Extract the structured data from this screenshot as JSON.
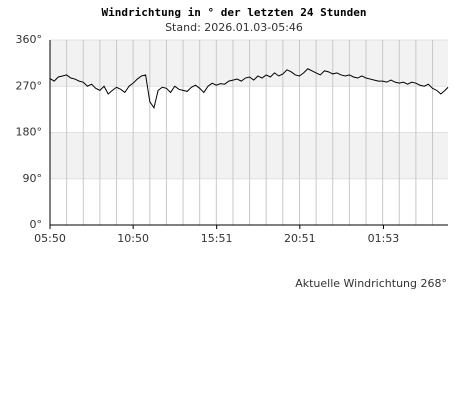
{
  "chart_data": {
    "type": "line",
    "title": "Windrichtung in ° der letzten 24 Stunden",
    "subtitle": "Stand: 2026.01.03-05:46",
    "annotation": "Aktuelle Windrichtung 268°",
    "x": [
      0,
      0.25,
      0.5,
      0.75,
      1,
      1.25,
      1.5,
      1.75,
      2,
      2.25,
      2.5,
      2.75,
      3,
      3.25,
      3.5,
      3.75,
      4,
      4.25,
      4.5,
      4.75,
      5,
      5.25,
      5.5,
      5.75,
      6,
      6.25,
      6.5,
      6.75,
      7,
      7.25,
      7.5,
      7.75,
      8,
      8.25,
      8.5,
      8.75,
      9,
      9.25,
      9.5,
      9.75,
      10,
      10.25,
      10.5,
      10.75,
      11,
      11.25,
      11.5,
      11.75,
      12,
      12.25,
      12.5,
      12.75,
      13,
      13.25,
      13.5,
      13.75,
      14,
      14.25,
      14.5,
      14.75,
      15,
      15.25,
      15.5,
      15.75,
      16,
      16.25,
      16.5,
      16.75,
      17,
      17.25,
      17.5,
      17.75,
      18,
      18.25,
      18.5,
      18.75,
      19,
      19.25,
      19.5,
      19.75,
      20,
      20.25,
      20.5,
      20.75,
      21,
      21.25,
      21.5,
      21.75,
      22,
      22.25,
      22.5,
      22.75,
      23,
      23.25,
      23.5,
      23.75,
      23.93
    ],
    "series": [
      {
        "name": "Windrichtung",
        "color": "#000000",
        "values": [
          285,
          280,
          288,
          290,
          292,
          286,
          284,
          280,
          278,
          270,
          274,
          266,
          262,
          270,
          255,
          262,
          268,
          264,
          258,
          270,
          276,
          284,
          290,
          292,
          240,
          228,
          262,
          268,
          266,
          258,
          270,
          264,
          262,
          260,
          268,
          272,
          266,
          258,
          270,
          276,
          272,
          275,
          274,
          280,
          282,
          284,
          280,
          286,
          288,
          282,
          290,
          286,
          292,
          288,
          296,
          290,
          294,
          302,
          298,
          292,
          290,
          296,
          304,
          300,
          296,
          292,
          300,
          298,
          294,
          296,
          292,
          290,
          292,
          288,
          286,
          290,
          286,
          284,
          282,
          280,
          280,
          278,
          282,
          278,
          276,
          278,
          274,
          278,
          276,
          272,
          270,
          274,
          266,
          262,
          255,
          262,
          268
        ]
      }
    ],
    "xlim": [
      0,
      23.93
    ],
    "xticks": [
      {
        "value": 0,
        "label": "05:50"
      },
      {
        "value": 5,
        "label": "10:50"
      },
      {
        "value": 10.02,
        "label": "15:51"
      },
      {
        "value": 15.02,
        "label": "20:51"
      },
      {
        "value": 20.05,
        "label": "01:53"
      }
    ],
    "xgrid": [
      1,
      2,
      3,
      4,
      5,
      6,
      7,
      8,
      9,
      10,
      11,
      12,
      13,
      14,
      15,
      16,
      17,
      18,
      19,
      20,
      21,
      22,
      23
    ],
    "ylim": [
      0,
      360
    ],
    "yticks": [
      {
        "value": 0,
        "label": "0°"
      },
      {
        "value": 90,
        "label": "90°"
      },
      {
        "value": 180,
        "label": "180°"
      },
      {
        "value": 270,
        "label": "270°"
      },
      {
        "value": 360,
        "label": "360°"
      }
    ],
    "band_color": "#f2f2f2",
    "grid": true
  }
}
